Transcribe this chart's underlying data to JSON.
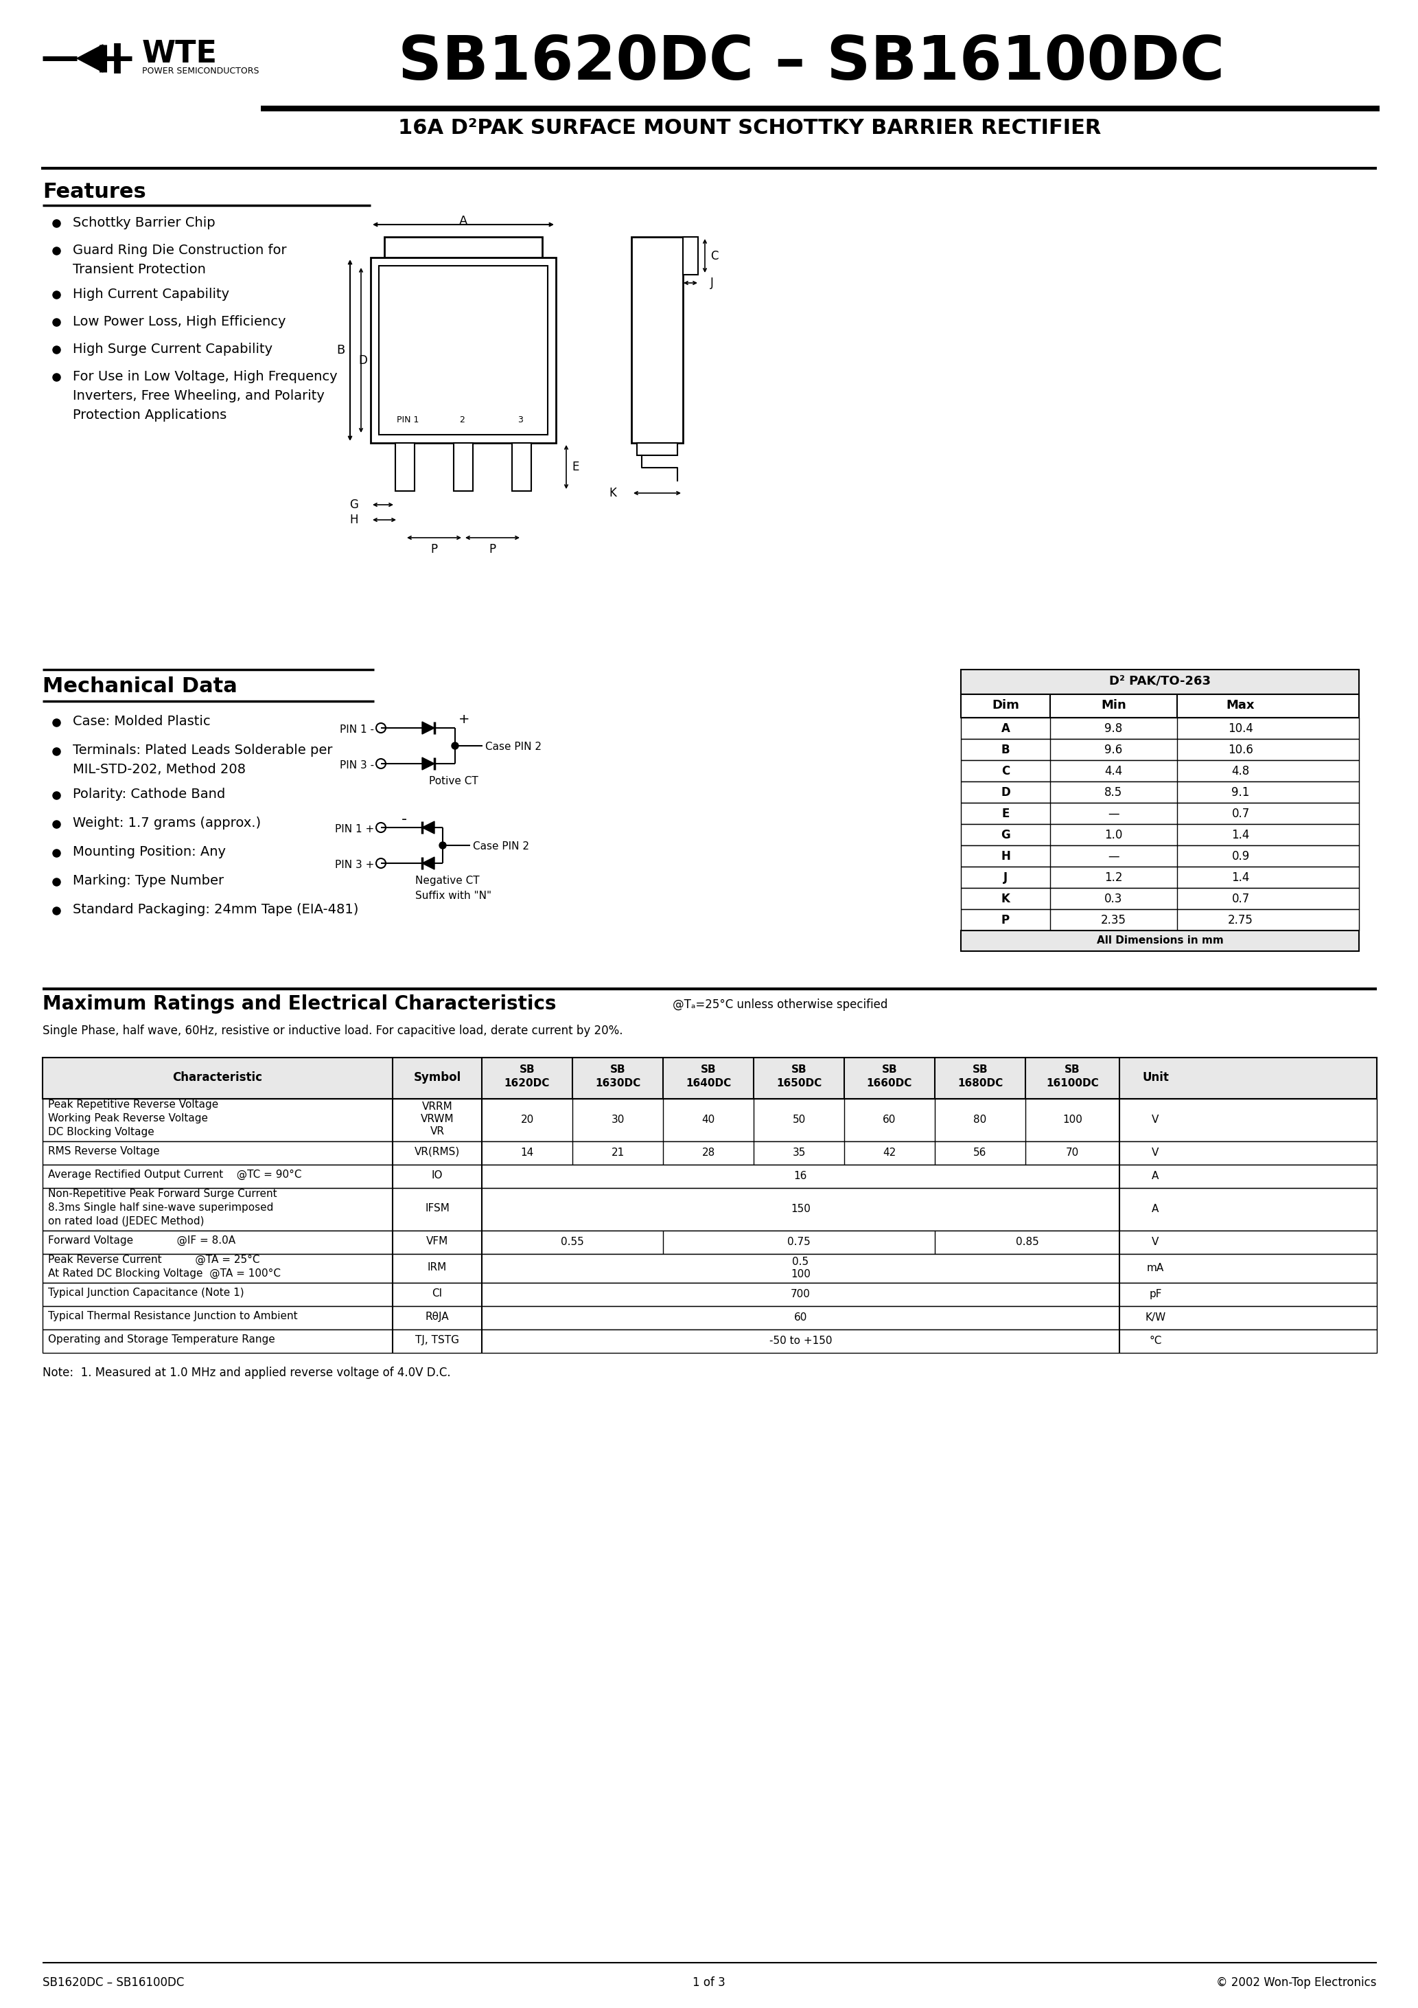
{
  "title": "SB1620DC – SB16100DC",
  "subtitle": "16A D²PAK SURFACE MOUNT SCHOTTKY BARRIER RECTIFIER",
  "company": "WTE",
  "company_sub": "POWER SEMICONDUCTORS",
  "features_title": "Features",
  "features": [
    "Schottky Barrier Chip",
    "Guard Ring Die Construction for\nTransient Protection",
    "High Current Capability",
    "Low Power Loss, High Efficiency",
    "High Surge Current Capability",
    "For Use in Low Voltage, High Frequency\nInverters, Free Wheeling, and Polarity\nProtection Applications"
  ],
  "mech_title": "Mechanical Data",
  "mech_items": [
    "Case: Molded Plastic",
    "Terminals: Plated Leads Solderable per\nMIL-STD-202, Method 208",
    "Polarity: Cathode Band",
    "Weight: 1.7 grams (approx.)",
    "Mounting Position: Any",
    "Marking: Type Number",
    "Standard Packaging: 24mm Tape (EIA-481)"
  ],
  "dim_table_title": "D² PAK/TO-263",
  "dim_headers": [
    "Dim",
    "Min",
    "Max"
  ],
  "dim_rows": [
    [
      "A",
      "9.8",
      "10.4"
    ],
    [
      "B",
      "9.6",
      "10.6"
    ],
    [
      "C",
      "4.4",
      "4.8"
    ],
    [
      "D",
      "8.5",
      "9.1"
    ],
    [
      "E",
      "—",
      "0.7"
    ],
    [
      "G",
      "1.0",
      "1.4"
    ],
    [
      "H",
      "—",
      "0.9"
    ],
    [
      "J",
      "1.2",
      "1.4"
    ],
    [
      "K",
      "0.3",
      "0.7"
    ],
    [
      "P",
      "2.35",
      "2.75"
    ]
  ],
  "dim_footer": "All Dimensions in mm",
  "ratings_title": "Maximum Ratings and Electrical Characteristics",
  "ratings_temp": "@Tₐ=25°C unless otherwise specified",
  "ratings_note": "Single Phase, half wave, 60Hz, resistive or inductive load. For capacitive load, derate current by 20%.",
  "table_col_headers": [
    "Characteristic",
    "Symbol",
    "SB\n1620DC",
    "SB\n1630DC",
    "SB\n1640DC",
    "SB\n1650DC",
    "SB\n1660DC",
    "SB\n1680DC",
    "SB\n16100DC",
    "Unit"
  ],
  "note": "Note:  1. Measured at 1.0 MHz and applied reverse voltage of 4.0V D.C.",
  "footer_left": "SB1620DC – SB16100DC",
  "footer_center": "1 of 3",
  "footer_right": "© 2002 Won-Top Electronics",
  "bg_color": "#ffffff"
}
